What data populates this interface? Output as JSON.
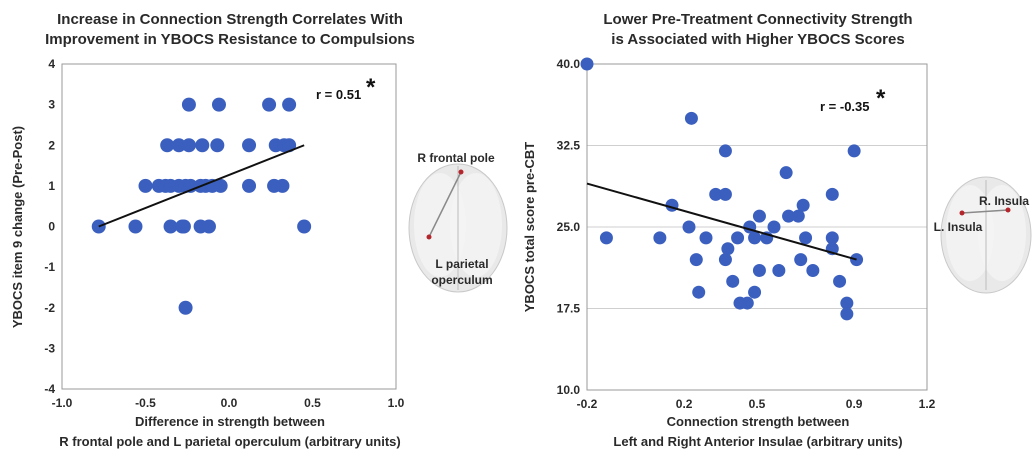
{
  "chart_data": [
    {
      "type": "scatter",
      "title_lines": [
        "Increase in Connection Strength Correlates With",
        "Improvement in YBOCS Resistance to Compulsions"
      ],
      "xlabel_lines": [
        "Difference in strength between",
        "R frontal pole and L parietal operculum (arbitrary units)"
      ],
      "ylabel": "YBOCS item 9 change (Pre-Post)",
      "xlim": [
        -1.0,
        1.0
      ],
      "ylim": [
        -4,
        4
      ],
      "x_ticks": [
        "-1.0",
        "-0.5",
        "0.0",
        "0.5",
        "1.0"
      ],
      "x_tick_values": [
        -1.0,
        -0.5,
        0.0,
        0.5,
        1.0
      ],
      "y_ticks": [
        "4",
        "3",
        "2",
        "1",
        "0",
        "-1",
        "-2",
        "-3",
        "-4"
      ],
      "y_tick_values": [
        4,
        3,
        2,
        1,
        0,
        -1,
        -2,
        -3,
        -4
      ],
      "grid": false,
      "correlation_label": "r = 0.51",
      "significance_marker": "*",
      "points": [
        {
          "x": -0.78,
          "y": 0
        },
        {
          "x": -0.56,
          "y": 0
        },
        {
          "x": -0.35,
          "y": 0
        },
        {
          "x": -0.27,
          "y": 0
        },
        {
          "x": -0.28,
          "y": 0
        },
        {
          "x": -0.17,
          "y": 0
        },
        {
          "x": -0.12,
          "y": 0
        },
        {
          "x": 0.45,
          "y": 0
        },
        {
          "x": -0.5,
          "y": 1
        },
        {
          "x": -0.42,
          "y": 1
        },
        {
          "x": -0.38,
          "y": 1
        },
        {
          "x": -0.35,
          "y": 1
        },
        {
          "x": -0.3,
          "y": 1
        },
        {
          "x": -0.26,
          "y": 1
        },
        {
          "x": -0.23,
          "y": 1
        },
        {
          "x": -0.17,
          "y": 1
        },
        {
          "x": -0.14,
          "y": 1
        },
        {
          "x": -0.1,
          "y": 1
        },
        {
          "x": -0.05,
          "y": 1
        },
        {
          "x": 0.12,
          "y": 1
        },
        {
          "x": 0.27,
          "y": 1
        },
        {
          "x": 0.32,
          "y": 1
        },
        {
          "x": -0.37,
          "y": 2
        },
        {
          "x": -0.3,
          "y": 2
        },
        {
          "x": -0.24,
          "y": 2
        },
        {
          "x": -0.16,
          "y": 2
        },
        {
          "x": -0.07,
          "y": 2
        },
        {
          "x": 0.12,
          "y": 2
        },
        {
          "x": 0.28,
          "y": 2
        },
        {
          "x": 0.33,
          "y": 2
        },
        {
          "x": 0.36,
          "y": 2
        },
        {
          "x": -0.24,
          "y": 3
        },
        {
          "x": -0.06,
          "y": 3
        },
        {
          "x": 0.24,
          "y": 3
        },
        {
          "x": 0.36,
          "y": 3
        },
        {
          "x": -0.26,
          "y": -2
        }
      ],
      "regression_line": {
        "x": [
          -0.78,
          0.45
        ],
        "y": [
          0.0,
          2.0
        ]
      },
      "brain_labels": [
        "R frontal pole",
        "L parietal",
        "operculum"
      ],
      "point_color": "#3a5fbe"
    },
    {
      "type": "scatter",
      "title_lines": [
        "Lower Pre-Treatment Connectivity Strength",
        "is Associated with Higher YBOCS Scores"
      ],
      "xlabel_lines": [
        "Connection strength between",
        "Left and Right Anterior Insulae (arbitrary units)"
      ],
      "ylabel": "YBOCS total score pre-CBT",
      "xlim": [
        -0.2,
        1.2
      ],
      "ylim": [
        10.0,
        40.0
      ],
      "x_ticks": [
        "-0.2",
        "0.2",
        "0.5",
        "0.9",
        "1.2"
      ],
      "x_tick_values": [
        -0.2,
        0.2,
        0.5,
        0.9,
        1.2
      ],
      "y_ticks": [
        "40.0",
        "32.5",
        "25.0",
        "17.5",
        "10.0"
      ],
      "y_tick_values": [
        40.0,
        32.5,
        25.0,
        17.5,
        10.0
      ],
      "grid": true,
      "correlation_label": "r = -0.35",
      "significance_marker": "*",
      "points": [
        {
          "x": -0.2,
          "y": 40
        },
        {
          "x": 0.23,
          "y": 35
        },
        {
          "x": 0.37,
          "y": 32
        },
        {
          "x": 0.62,
          "y": 30
        },
        {
          "x": 0.9,
          "y": 32
        },
        {
          "x": 0.33,
          "y": 28
        },
        {
          "x": 0.37,
          "y": 28
        },
        {
          "x": 0.81,
          "y": 28
        },
        {
          "x": 0.15,
          "y": 27
        },
        {
          "x": 0.69,
          "y": 27
        },
        {
          "x": 0.51,
          "y": 26
        },
        {
          "x": 0.63,
          "y": 26
        },
        {
          "x": 0.67,
          "y": 26
        },
        {
          "x": 0.22,
          "y": 25
        },
        {
          "x": 0.47,
          "y": 25
        },
        {
          "x": 0.57,
          "y": 25
        },
        {
          "x": -0.12,
          "y": 24
        },
        {
          "x": 0.1,
          "y": 24
        },
        {
          "x": 0.29,
          "y": 24
        },
        {
          "x": 0.42,
          "y": 24
        },
        {
          "x": 0.49,
          "y": 24
        },
        {
          "x": 0.54,
          "y": 24
        },
        {
          "x": 0.7,
          "y": 24
        },
        {
          "x": 0.81,
          "y": 24
        },
        {
          "x": 0.38,
          "y": 23
        },
        {
          "x": 0.81,
          "y": 23
        },
        {
          "x": 0.25,
          "y": 22
        },
        {
          "x": 0.37,
          "y": 22
        },
        {
          "x": 0.68,
          "y": 22
        },
        {
          "x": 0.91,
          "y": 22
        },
        {
          "x": 0.51,
          "y": 21
        },
        {
          "x": 0.59,
          "y": 21
        },
        {
          "x": 0.73,
          "y": 21
        },
        {
          "x": 0.4,
          "y": 20
        },
        {
          "x": 0.84,
          "y": 20
        },
        {
          "x": 0.26,
          "y": 19
        },
        {
          "x": 0.49,
          "y": 19
        },
        {
          "x": 0.43,
          "y": 18
        },
        {
          "x": 0.46,
          "y": 18
        },
        {
          "x": 0.87,
          "y": 18
        },
        {
          "x": 0.87,
          "y": 17
        }
      ],
      "regression_line": {
        "x": [
          -0.2,
          0.91
        ],
        "y": [
          29.0,
          22.0
        ]
      },
      "brain_labels": [
        "R. Insula",
        "L. Insula"
      ],
      "point_color": "#3a5fbe"
    }
  ]
}
